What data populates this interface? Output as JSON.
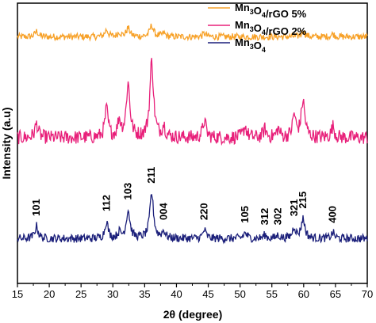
{
  "chart_data": {
    "type": "line",
    "xlabel": "2θ (degree)",
    "ylabel": "Intensity (a.u)",
    "xlim": [
      15,
      70
    ],
    "x_ticks": [
      15,
      20,
      25,
      30,
      35,
      40,
      45,
      50,
      55,
      60,
      65,
      70
    ],
    "y_ticks_visible": false,
    "legend_position": "top-right",
    "series": [
      {
        "name": "Mn3O4/rGO 5%",
        "legend_label": {
          "main": "Mn",
          "s1": "3",
          "mid": "O",
          "s2": "4",
          "rest": "/rGO 5%"
        },
        "color": "#f7a128",
        "baseline": 0.88,
        "noise": 0.012,
        "peaks": [
          {
            "x": 18.0,
            "h": 0.02,
            "w": 0.3
          },
          {
            "x": 29.0,
            "h": 0.025,
            "w": 0.3
          },
          {
            "x": 31.0,
            "h": 0.015,
            "w": 0.3
          },
          {
            "x": 32.4,
            "h": 0.03,
            "w": 0.35
          },
          {
            "x": 36.1,
            "h": 0.04,
            "w": 0.35
          },
          {
            "x": 38.0,
            "h": 0.012,
            "w": 0.3
          },
          {
            "x": 44.4,
            "h": 0.012,
            "w": 0.3
          },
          {
            "x": 59.9,
            "h": 0.02,
            "w": 0.35
          },
          {
            "x": 64.6,
            "h": 0.01,
            "w": 0.3
          }
        ]
      },
      {
        "name": "Mn3O4/rGO 2%",
        "legend_label": {
          "main": "Mn",
          "s1": "3",
          "mid": "O",
          "s2": "4",
          "rest": "/rGO 2%"
        },
        "color": "#e8207a",
        "baseline": 0.52,
        "noise": 0.025,
        "peaks": [
          {
            "x": 18.0,
            "h": 0.05,
            "w": 0.3
          },
          {
            "x": 29.0,
            "h": 0.1,
            "w": 0.3
          },
          {
            "x": 31.0,
            "h": 0.06,
            "w": 0.3
          },
          {
            "x": 32.4,
            "h": 0.19,
            "w": 0.35
          },
          {
            "x": 36.1,
            "h": 0.27,
            "w": 0.35
          },
          {
            "x": 38.0,
            "h": 0.04,
            "w": 0.3
          },
          {
            "x": 44.4,
            "h": 0.06,
            "w": 0.3
          },
          {
            "x": 50.8,
            "h": 0.04,
            "w": 0.3
          },
          {
            "x": 53.9,
            "h": 0.03,
            "w": 0.3
          },
          {
            "x": 56.0,
            "h": 0.03,
            "w": 0.3
          },
          {
            "x": 58.5,
            "h": 0.08,
            "w": 0.3
          },
          {
            "x": 59.9,
            "h": 0.13,
            "w": 0.35
          },
          {
            "x": 64.6,
            "h": 0.04,
            "w": 0.3
          }
        ]
      },
      {
        "name": "Mn3O4",
        "legend_label": {
          "main": "Mn",
          "s1": "3",
          "mid": "O",
          "s2": "4",
          "rest": ""
        },
        "color": "#1b1f7a",
        "baseline": 0.16,
        "noise": 0.015,
        "peaks": [
          {
            "x": 18.0,
            "h": 0.045,
            "w": 0.3
          },
          {
            "x": 29.0,
            "h": 0.06,
            "w": 0.3
          },
          {
            "x": 31.0,
            "h": 0.02,
            "w": 0.3
          },
          {
            "x": 32.4,
            "h": 0.1,
            "w": 0.35
          },
          {
            "x": 36.1,
            "h": 0.16,
            "w": 0.35
          },
          {
            "x": 38.0,
            "h": 0.025,
            "w": 0.3
          },
          {
            "x": 44.4,
            "h": 0.03,
            "w": 0.3
          },
          {
            "x": 50.8,
            "h": 0.02,
            "w": 0.3
          },
          {
            "x": 53.9,
            "h": 0.012,
            "w": 0.3
          },
          {
            "x": 56.0,
            "h": 0.012,
            "w": 0.3
          },
          {
            "x": 58.5,
            "h": 0.04,
            "w": 0.3
          },
          {
            "x": 59.9,
            "h": 0.07,
            "w": 0.35
          },
          {
            "x": 64.6,
            "h": 0.02,
            "w": 0.3
          }
        ]
      }
    ],
    "annotations": [
      {
        "text": "101",
        "x": 18.0
      },
      {
        "text": "112",
        "x": 29.0
      },
      {
        "text": "103",
        "x": 32.4
      },
      {
        "text": "211",
        "x": 36.1
      },
      {
        "text": "004",
        "x": 38.0
      },
      {
        "text": "220",
        "x": 44.4
      },
      {
        "text": "105",
        "x": 50.8
      },
      {
        "text": "312",
        "x": 53.9
      },
      {
        "text": "302",
        "x": 56.0
      },
      {
        "text": "321",
        "x": 58.5
      },
      {
        "text": "215",
        "x": 59.9
      },
      {
        "text": "400",
        "x": 64.6
      }
    ]
  }
}
